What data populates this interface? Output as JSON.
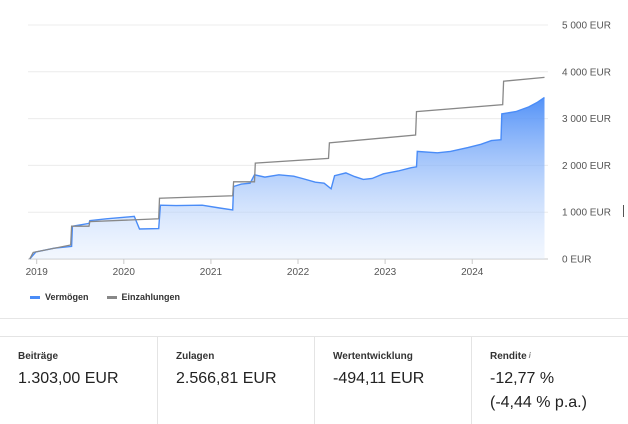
{
  "chart_data": {
    "type": "area",
    "xlabel": "",
    "ylabel": "",
    "x_ticks": [
      "2019",
      "2020",
      "2021",
      "2022",
      "2023",
      "2024"
    ],
    "y_ticks": [
      "0 EUR",
      "1 000 EUR",
      "2 000 EUR",
      "3 000 EUR",
      "4 000 EUR",
      "5 000 EUR"
    ],
    "xlim": [
      2018.9,
      2024.87
    ],
    "ylim": [
      0,
      5000
    ],
    "grid": true,
    "legend_position": "bottom-left",
    "series": [
      {
        "name": "Vermögen",
        "color": "#4a8cf7",
        "points": [
          [
            2018.92,
            0
          ],
          [
            2018.99,
            150
          ],
          [
            2019.2,
            230
          ],
          [
            2019.4,
            270
          ],
          [
            2019.41,
            700
          ],
          [
            2019.6,
            760
          ],
          [
            2019.61,
            820
          ],
          [
            2019.8,
            860
          ],
          [
            2020.0,
            890
          ],
          [
            2020.12,
            910
          ],
          [
            2020.18,
            640
          ],
          [
            2020.4,
            650
          ],
          [
            2020.42,
            1150
          ],
          [
            2020.6,
            1140
          ],
          [
            2020.9,
            1150
          ],
          [
            2021.1,
            1090
          ],
          [
            2021.25,
            1050
          ],
          [
            2021.26,
            1550
          ],
          [
            2021.35,
            1600
          ],
          [
            2021.45,
            1620
          ],
          [
            2021.5,
            1800
          ],
          [
            2021.62,
            1750
          ],
          [
            2021.78,
            1800
          ],
          [
            2021.95,
            1770
          ],
          [
            2022.05,
            1720
          ],
          [
            2022.2,
            1640
          ],
          [
            2022.3,
            1620
          ],
          [
            2022.38,
            1500
          ],
          [
            2022.42,
            1780
          ],
          [
            2022.55,
            1840
          ],
          [
            2022.65,
            1760
          ],
          [
            2022.75,
            1700
          ],
          [
            2022.85,
            1720
          ],
          [
            2022.98,
            1820
          ],
          [
            2023.15,
            1880
          ],
          [
            2023.3,
            1950
          ],
          [
            2023.36,
            1970
          ],
          [
            2023.37,
            2300
          ],
          [
            2023.6,
            2270
          ],
          [
            2023.75,
            2300
          ],
          [
            2023.95,
            2380
          ],
          [
            2024.1,
            2450
          ],
          [
            2024.22,
            2530
          ],
          [
            2024.33,
            2550
          ],
          [
            2024.34,
            3100
          ],
          [
            2024.5,
            3150
          ],
          [
            2024.65,
            3250
          ],
          [
            2024.75,
            3350
          ],
          [
            2024.83,
            3450
          ]
        ]
      },
      {
        "name": "Einzahlungen",
        "color": "#888888",
        "points": [
          [
            2018.92,
            0
          ],
          [
            2018.96,
            140
          ],
          [
            2019.39,
            300
          ],
          [
            2019.4,
            700
          ],
          [
            2019.6,
            700
          ],
          [
            2019.61,
            800
          ],
          [
            2020.4,
            860
          ],
          [
            2020.41,
            1300
          ],
          [
            2021.25,
            1350
          ],
          [
            2021.26,
            1650
          ],
          [
            2021.5,
            1650
          ],
          [
            2021.51,
            2050
          ],
          [
            2022.35,
            2150
          ],
          [
            2022.36,
            2480
          ],
          [
            2023.35,
            2650
          ],
          [
            2023.36,
            3150
          ],
          [
            2024.35,
            3300
          ],
          [
            2024.36,
            3800
          ],
          [
            2024.83,
            3880
          ]
        ]
      }
    ]
  },
  "cards": [
    {
      "label": "Beiträge",
      "value": "1.303,00 EUR",
      "value2": ""
    },
    {
      "label": "Zulagen",
      "value": "2.566,81 EUR",
      "value2": ""
    },
    {
      "label": "Wertentwicklung",
      "value": "-494,11 EUR",
      "value2": ""
    },
    {
      "label": "Rendite",
      "info": "i",
      "value": "-12,77 %",
      "value2": "(-4,44 % p.a.)"
    }
  ]
}
